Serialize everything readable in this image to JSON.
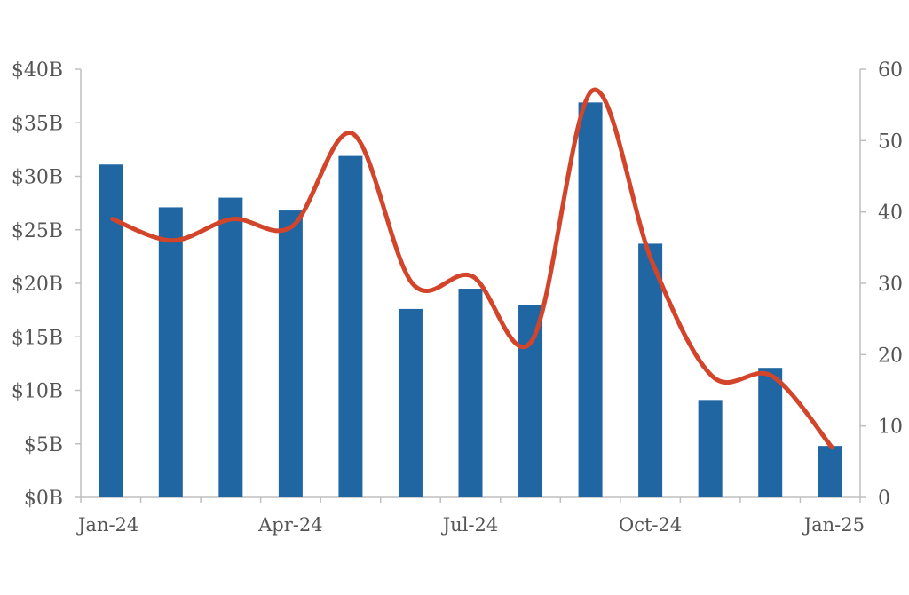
{
  "chart_data": {
    "type": "bar",
    "categories": [
      "Jan-24",
      "Feb-24",
      "Mar-24",
      "Apr-24",
      "May-24",
      "Jun-24",
      "Jul-24",
      "Aug-24",
      "Sep-24",
      "Oct-24",
      "Nov-24",
      "Dec-24",
      "Jan-25"
    ],
    "series": [
      {
        "type": "bar",
        "axis": "left",
        "color": "#1f66a3",
        "values": [
          31.1,
          27.1,
          28.0,
          26.8,
          31.9,
          17.6,
          19.5,
          18.0,
          36.9,
          23.7,
          9.1,
          12.1,
          4.8
        ]
      },
      {
        "type": "line",
        "axis": "right",
        "smooth": true,
        "color": "#d2452b",
        "values": [
          39,
          36,
          39,
          38,
          51,
          30,
          31,
          22,
          57,
          33,
          17,
          17,
          7
        ]
      }
    ],
    "x_tick_labels": [
      "Jan-24",
      "Apr-24",
      "Jul-24",
      "Oct-24",
      "Jan-25"
    ],
    "y_left": {
      "min": 0,
      "max": 40,
      "ticks": [
        {
          "value": 0,
          "label": "$0B"
        },
        {
          "value": 5,
          "label": "$5B"
        },
        {
          "value": 10,
          "label": "$10B"
        },
        {
          "value": 15,
          "label": "$15B"
        },
        {
          "value": 20,
          "label": "$20B"
        },
        {
          "value": 25,
          "label": "$25B"
        },
        {
          "value": 30,
          "label": "$30B"
        },
        {
          "value": 35,
          "label": "$35B"
        },
        {
          "value": 40,
          "label": "$40B"
        }
      ]
    },
    "y_right": {
      "min": 0,
      "max": 60,
      "ticks": [
        {
          "value": 0,
          "label": "0"
        },
        {
          "value": 10,
          "label": "10"
        },
        {
          "value": 20,
          "label": "20"
        },
        {
          "value": 30,
          "label": "30"
        },
        {
          "value": 40,
          "label": "40"
        },
        {
          "value": 50,
          "label": "50"
        },
        {
          "value": 60,
          "label": "60"
        }
      ]
    },
    "title": "",
    "xlabel": "",
    "ylabel": "",
    "grid": false,
    "legend": "none"
  }
}
